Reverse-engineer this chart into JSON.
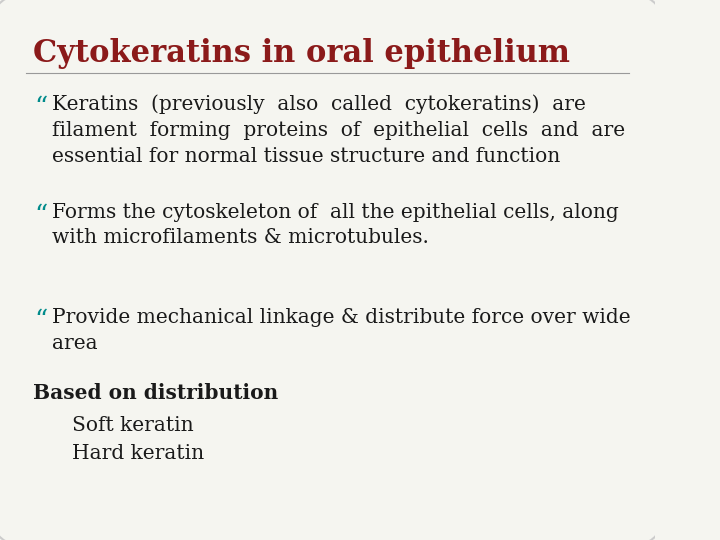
{
  "title": "Cytokeratins in oral epithelium",
  "title_color": "#8B1A1A",
  "title_fontsize": 22,
  "background_color": "#F5F5F0",
  "border_color": "#CCCCCC",
  "bullet_color": "#008B8B",
  "bullet_char": "“",
  "body_color": "#1a1a1a",
  "body_fontsize": 14.5,
  "bullets": [
    {
      "text": "Keratins  (previously  also  called  cytokeratins)  are\nfilament  forming  proteins  of  epithelial  cells  and  are\nessential for normal tissue structure and function",
      "indent": 0.07,
      "bullet": true,
      "bold": false
    },
    {
      "text": "Forms the cytoskeleton of  all the epithelial cells, along\nwith microfilaments & microtubules.",
      "indent": 0.07,
      "bullet": true,
      "bold": false
    },
    {
      "text": "Provide mechanical linkage & distribute force over wide\narea",
      "indent": 0.07,
      "bullet": true,
      "bold": false
    },
    {
      "text": "Based on distribution",
      "indent": 0.04,
      "bullet": false,
      "bold": true
    },
    {
      "text": "Soft keratin",
      "indent": 0.1,
      "bullet": false,
      "bold": false
    },
    {
      "text": "Hard keratin",
      "indent": 0.1,
      "bullet": false,
      "bold": false
    }
  ]
}
